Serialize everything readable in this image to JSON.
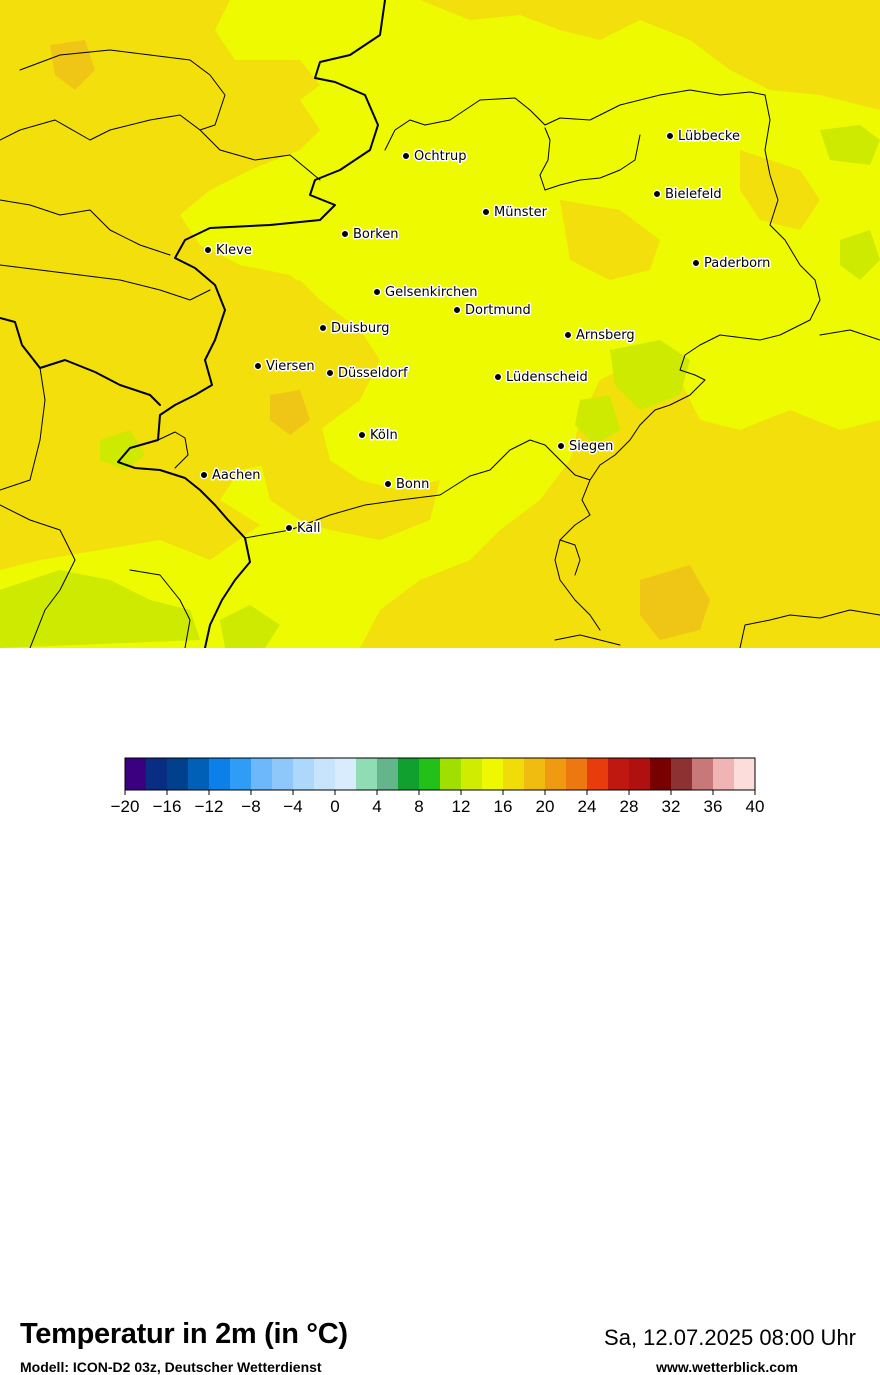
{
  "map": {
    "cities": [
      {
        "name": "Lübbecke"
      },
      {
        "name": "Ochtrup"
      },
      {
        "name": "Bielefeld"
      },
      {
        "name": "Münster"
      },
      {
        "name": "Borken"
      },
      {
        "name": "Kleve"
      },
      {
        "name": "Paderborn"
      },
      {
        "name": "Gelsenkirchen"
      },
      {
        "name": "Dortmund"
      },
      {
        "name": "Duisburg"
      },
      {
        "name": "Arnsberg"
      },
      {
        "name": "Viersen"
      },
      {
        "name": "Düsseldorf"
      },
      {
        "name": "Lüdenscheid"
      },
      {
        "name": "Köln"
      },
      {
        "name": "Siegen"
      },
      {
        "name": "Aachen"
      },
      {
        "name": "Bonn"
      },
      {
        "name": "Kall"
      }
    ],
    "colors": {
      "base": "#eefa00",
      "warm": "#f3df0c",
      "cool": "#cdea00",
      "warmest": "#f0c616",
      "border": "#000000"
    }
  },
  "footer": {
    "title": "Temperatur in 2m (in °C)",
    "model": "Modell: ICON-D2 03z, Deutscher Wetterdienst",
    "datetime": "Sa, 12.07.2025 08:00 Uhr",
    "website": "www.wetterblick.com"
  },
  "legend": {
    "ticks": [
      "−20",
      "−16",
      "−12",
      "−8",
      "−4",
      "0",
      "4",
      "8",
      "12",
      "16",
      "20",
      "24",
      "28",
      "32",
      "36",
      "40"
    ],
    "colors": [
      "#3a0080",
      "#0a2d84",
      "#00408c",
      "#0060b8",
      "#0a80e8",
      "#2f9cf5",
      "#6db8fa",
      "#8ec8fa",
      "#add8fc",
      "#c8e4fd",
      "#d8ecfd",
      "#90dcb4",
      "#64b48c",
      "#10a030",
      "#22c018",
      "#a0e000",
      "#d0ec00",
      "#eef800",
      "#f0dc08",
      "#f0bc10",
      "#ef9a10",
      "#ee7810",
      "#e83c0c",
      "#be1810",
      "#b01010",
      "#780000",
      "#8c3232",
      "#c87878",
      "#f0b4b4",
      "#fddcdc"
    ]
  }
}
